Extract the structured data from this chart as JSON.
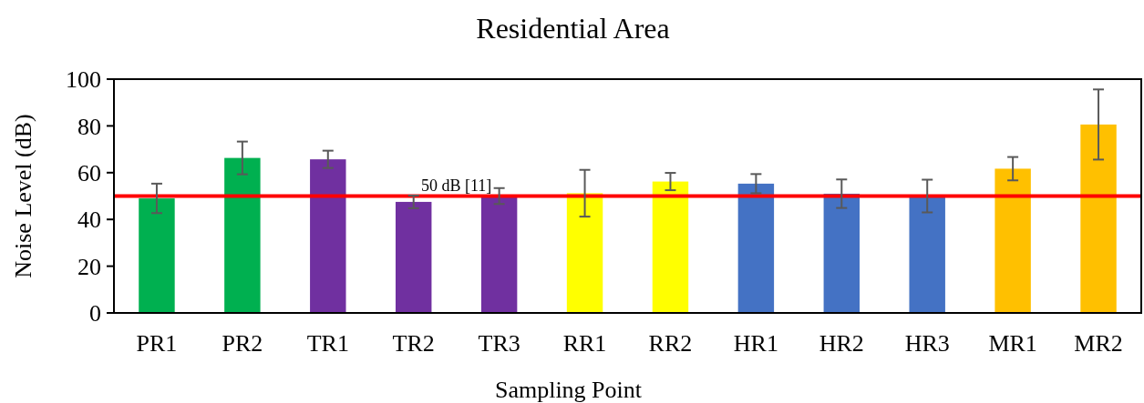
{
  "chart_data": {
    "type": "bar",
    "title": "Residential Area",
    "xlabel": "Sampling Point",
    "ylabel": "Noise Level (dB)",
    "categories": [
      "PR1",
      "PR2",
      "TR1",
      "TR2",
      "TR3",
      "RR1",
      "RR2",
      "HR1",
      "HR2",
      "HR3",
      "MR1",
      "MR2"
    ],
    "values": [
      49,
      66.3,
      65.7,
      47.5,
      50,
      51.2,
      56.2,
      55.3,
      51,
      50,
      61.7,
      80.6
    ],
    "errors": [
      6.3,
      7,
      3.7,
      2.7,
      3.4,
      10,
      3.7,
      4.1,
      6.1,
      7,
      5,
      15
    ],
    "colors": [
      "#00b050",
      "#00b050",
      "#7030a0",
      "#7030a0",
      "#7030a0",
      "#ffff00",
      "#ffff00",
      "#4472c4",
      "#4472c4",
      "#4472c4",
      "#ffc000",
      "#ffc000"
    ],
    "ylim": [
      0,
      100
    ],
    "yticks": [
      0,
      20,
      40,
      60,
      80,
      100
    ],
    "grid": false,
    "ref_lines": [
      {
        "axis": "y",
        "value": 50,
        "label": "50 dB [11]",
        "color": "#ff0000"
      }
    ]
  }
}
